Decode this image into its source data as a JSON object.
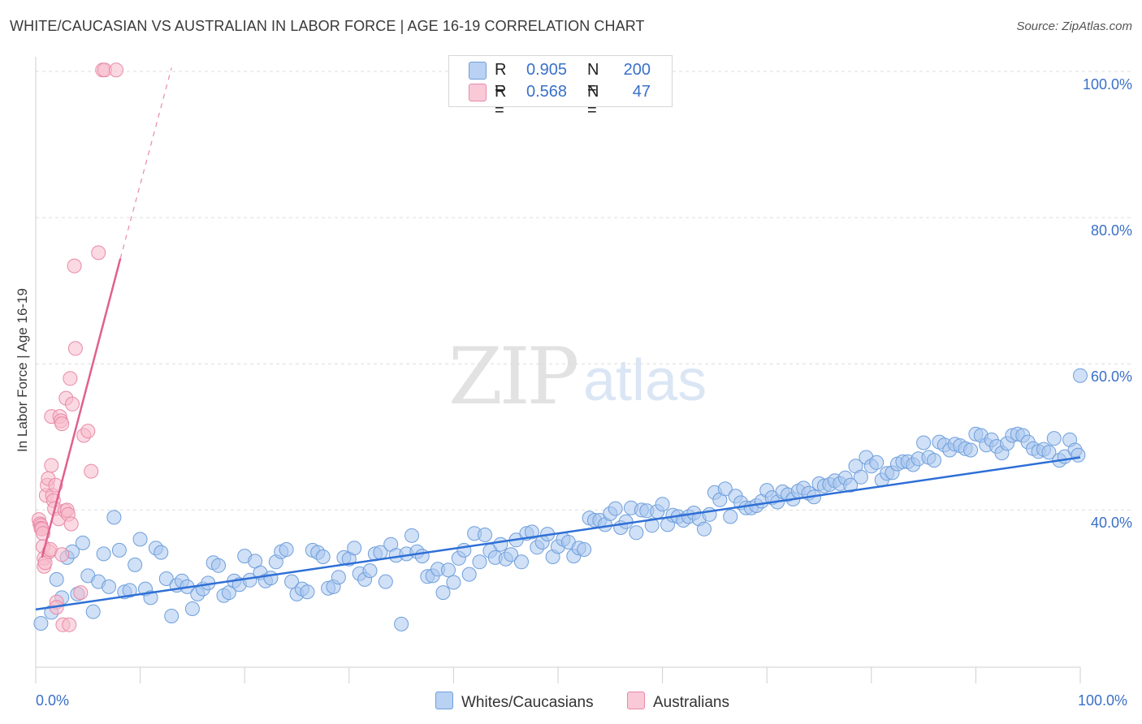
{
  "title": "WHITE/CAUCASIAN VS AUSTRALIAN IN LABOR FORCE | AGE 16-19 CORRELATION CHART",
  "source": "Source: ZipAtlas.com",
  "watermark": {
    "zip": "ZIP",
    "atlas": "atlas"
  },
  "legend": {
    "rows": [
      {
        "r_label": "R =",
        "r_value": "0.905",
        "n_label": "N =",
        "n_value": "200"
      },
      {
        "r_label": "R =",
        "r_value": "0.568",
        "n_label": "N =",
        "n_value": "47"
      }
    ]
  },
  "bottom_legend": {
    "series_a": "Whites/Caucasians",
    "series_b": "Australians"
  },
  "colors": {
    "blue_fill": "#a9c6ef",
    "blue_stroke": "#6f9fdc",
    "blue_line": "#2e6fd6",
    "pink_fill": "#f7b9cb",
    "pink_stroke": "#e88aa8",
    "pink_line": "#e0608f",
    "axis_text": "#3a70c8",
    "grid": "#dddddd"
  },
  "chart_data": {
    "type": "scatter",
    "title": "WHITE/CAUCASIAN VS AUSTRALIAN IN LABOR FORCE | AGE 16-19 CORRELATION CHART",
    "ylabel": "In Labor Force | Age 16-19",
    "xlabel": "",
    "xlim": [
      0,
      100
    ],
    "ylim": [
      18.5,
      102
    ],
    "x_ticks": [
      "0.0%",
      "100.0%"
    ],
    "y_ticks": [
      {
        "value": 40,
        "label": "40.0%"
      },
      {
        "value": 60,
        "label": "60.0%"
      },
      {
        "value": 80,
        "label": "80.0%"
      },
      {
        "value": 100,
        "label": "100.0%"
      }
    ],
    "grid": true,
    "series": [
      {
        "name": "Whites/Caucasians",
        "color": "#6f9fdc",
        "trend": {
          "x0": 0,
          "y0": 26.4,
          "x1": 100,
          "y1": 47.2,
          "dashed_ext": false
        },
        "points": [
          [
            0.5,
            24.5
          ],
          [
            1.5,
            26
          ],
          [
            2,
            30.5
          ],
          [
            2.5,
            28
          ],
          [
            3,
            33.5
          ],
          [
            3.5,
            34.3
          ],
          [
            4,
            28.5
          ],
          [
            4.5,
            35.5
          ],
          [
            5,
            31
          ],
          [
            5.5,
            26.1
          ],
          [
            6,
            30.2
          ],
          [
            6.5,
            34
          ],
          [
            7,
            29.5
          ],
          [
            7.5,
            39
          ],
          [
            8,
            34.5
          ],
          [
            8.5,
            28.8
          ],
          [
            9,
            29
          ],
          [
            9.5,
            32.5
          ],
          [
            10,
            36
          ],
          [
            10.5,
            29.2
          ],
          [
            11,
            28
          ],
          [
            11.5,
            34.8
          ],
          [
            12,
            34.2
          ],
          [
            12.5,
            30.6
          ],
          [
            13,
            25.5
          ],
          [
            13.5,
            29.7
          ],
          [
            14,
            30.3
          ],
          [
            14.5,
            29.5
          ],
          [
            15,
            26.5
          ],
          [
            15.5,
            28.5
          ],
          [
            16,
            29.2
          ],
          [
            16.5,
            30
          ],
          [
            17,
            32.8
          ],
          [
            17.5,
            32.4
          ],
          [
            18,
            28.3
          ],
          [
            18.5,
            28.7
          ],
          [
            19,
            30.3
          ],
          [
            19.5,
            29.8
          ],
          [
            20,
            33.7
          ],
          [
            20.5,
            30.4
          ],
          [
            21,
            33
          ],
          [
            21.5,
            31.4
          ],
          [
            22,
            30.3
          ],
          [
            22.5,
            30.7
          ],
          [
            23,
            32.9
          ],
          [
            23.5,
            34.3
          ],
          [
            24,
            34.6
          ],
          [
            24.5,
            30.2
          ],
          [
            25,
            28.5
          ],
          [
            25.5,
            29.2
          ],
          [
            26,
            28.8
          ],
          [
            26.5,
            34.5
          ],
          [
            27,
            34.2
          ],
          [
            27.5,
            33.6
          ],
          [
            28,
            29.3
          ],
          [
            28.5,
            29.5
          ],
          [
            29,
            30.8
          ],
          [
            29.5,
            33.5
          ],
          [
            30,
            33.3
          ],
          [
            30.5,
            34.8
          ],
          [
            31,
            31.3
          ],
          [
            31.5,
            30.5
          ],
          [
            32,
            31.7
          ],
          [
            32.5,
            34
          ],
          [
            33,
            34.2
          ],
          [
            33.5,
            30.2
          ],
          [
            34,
            35.3
          ],
          [
            34.5,
            33.8
          ],
          [
            35,
            24.4
          ],
          [
            35.5,
            34
          ],
          [
            36,
            36.5
          ],
          [
            36.5,
            34.3
          ],
          [
            37,
            33.7
          ],
          [
            37.5,
            30.9
          ],
          [
            38,
            31
          ],
          [
            38.5,
            31.9
          ],
          [
            39,
            28.7
          ],
          [
            39.5,
            31.8
          ],
          [
            40,
            30.1
          ],
          [
            40.5,
            33.4
          ],
          [
            41,
            34.5
          ],
          [
            41.5,
            31.2
          ],
          [
            42,
            36.8
          ],
          [
            42.5,
            32.9
          ],
          [
            43,
            36.6
          ],
          [
            43.5,
            34.4
          ],
          [
            44,
            33.5
          ],
          [
            44.5,
            35.3
          ],
          [
            45,
            33.3
          ],
          [
            45.5,
            33.9
          ],
          [
            46,
            35.9
          ],
          [
            46.5,
            32.9
          ],
          [
            47,
            36.8
          ],
          [
            47.5,
            37
          ],
          [
            48,
            34.9
          ],
          [
            48.5,
            35.6
          ],
          [
            49,
            36.7
          ],
          [
            49.5,
            33.6
          ],
          [
            50,
            35
          ],
          [
            50.5,
            36
          ],
          [
            51,
            35.6
          ],
          [
            51.5,
            33.7
          ],
          [
            52,
            34.8
          ],
          [
            52.5,
            34.6
          ],
          [
            53,
            38.9
          ],
          [
            53.5,
            38.6
          ],
          [
            54,
            38.6
          ],
          [
            54.5,
            38
          ],
          [
            55,
            39.5
          ],
          [
            55.5,
            40.2
          ],
          [
            56,
            37.6
          ],
          [
            56.5,
            38.4
          ],
          [
            57,
            40.3
          ],
          [
            57.5,
            36.9
          ],
          [
            58,
            40
          ],
          [
            58.5,
            39.9
          ],
          [
            59,
            37.9
          ],
          [
            59.5,
            39.8
          ],
          [
            60,
            40.8
          ],
          [
            60.5,
            38
          ],
          [
            61,
            39.3
          ],
          [
            61.5,
            39.1
          ],
          [
            62,
            38.6
          ],
          [
            62.5,
            39.1
          ],
          [
            63,
            39.6
          ],
          [
            63.5,
            38.8
          ],
          [
            64,
            37.4
          ],
          [
            64.5,
            39.4
          ],
          [
            65,
            42.4
          ],
          [
            65.5,
            41.4
          ],
          [
            66,
            42.9
          ],
          [
            66.5,
            39.1
          ],
          [
            67,
            41.9
          ],
          [
            67.5,
            41
          ],
          [
            68,
            40.3
          ],
          [
            68.5,
            40.3
          ],
          [
            69,
            40.6
          ],
          [
            69.5,
            41.2
          ],
          [
            70,
            42.7
          ],
          [
            70.5,
            41.7
          ],
          [
            71,
            41.1
          ],
          [
            71.5,
            42.5
          ],
          [
            72,
            42.1
          ],
          [
            72.5,
            41.5
          ],
          [
            73,
            42.6
          ],
          [
            73.5,
            43
          ],
          [
            74,
            42.3
          ],
          [
            74.5,
            41.8
          ],
          [
            75,
            43.6
          ],
          [
            75.5,
            43.3
          ],
          [
            76,
            43.5
          ],
          [
            76.5,
            44
          ],
          [
            77,
            43.6
          ],
          [
            77.5,
            44.4
          ],
          [
            78,
            43.4
          ],
          [
            78.5,
            46
          ],
          [
            79,
            44.5
          ],
          [
            79.5,
            47.2
          ],
          [
            80,
            46
          ],
          [
            80.5,
            46.5
          ],
          [
            81,
            44.1
          ],
          [
            81.5,
            45
          ],
          [
            82,
            45.1
          ],
          [
            82.5,
            46.3
          ],
          [
            83,
            46.6
          ],
          [
            83.5,
            46.6
          ],
          [
            84,
            46.2
          ],
          [
            84.5,
            47
          ],
          [
            85,
            49.2
          ],
          [
            85.5,
            47.2
          ],
          [
            86,
            46.8
          ],
          [
            86.5,
            49.3
          ],
          [
            87,
            48.9
          ],
          [
            87.5,
            48.2
          ],
          [
            88,
            49
          ],
          [
            88.5,
            48.8
          ],
          [
            89,
            48.4
          ],
          [
            89.5,
            48.2
          ],
          [
            90,
            50.4
          ],
          [
            90.5,
            50.2
          ],
          [
            91,
            48.9
          ],
          [
            91.5,
            49.6
          ],
          [
            92,
            48.7
          ],
          [
            92.5,
            47.8
          ],
          [
            93,
            49.1
          ],
          [
            93.5,
            50.2
          ],
          [
            94,
            50.4
          ],
          [
            94.5,
            50.2
          ],
          [
            95,
            49.3
          ],
          [
            95.5,
            48.4
          ],
          [
            96,
            48
          ],
          [
            96.5,
            48.3
          ],
          [
            97,
            47.9
          ],
          [
            97.5,
            49.8
          ],
          [
            98,
            46.8
          ],
          [
            98.5,
            47.3
          ],
          [
            99,
            49.6
          ],
          [
            99.5,
            48.2
          ],
          [
            100,
            58.4
          ],
          [
            99.8,
            47.5
          ]
        ]
      },
      {
        "name": "Australians",
        "color": "#e88aa8",
        "trend": {
          "x0": 0.6,
          "y0": 33.5,
          "x1": 8.1,
          "y1": 74.4,
          "dashed_ext": true,
          "dash_x1": 13,
          "dash_y1": 100.5
        },
        "points": [
          [
            0.3,
            38.7
          ],
          [
            0.4,
            38.1
          ],
          [
            0.5,
            37.9
          ],
          [
            0.5,
            37.5
          ],
          [
            0.6,
            37.4
          ],
          [
            0.7,
            36.8
          ],
          [
            0.7,
            35
          ],
          [
            0.8,
            33.4
          ],
          [
            0.8,
            32.3
          ],
          [
            0.9,
            32.8
          ],
          [
            1,
            42
          ],
          [
            1.1,
            43.4
          ],
          [
            1.2,
            44.3
          ],
          [
            1.3,
            34.3
          ],
          [
            1.4,
            34.6
          ],
          [
            1.5,
            46.1
          ],
          [
            1.5,
            52.8
          ],
          [
            1.6,
            42
          ],
          [
            1.7,
            41.3
          ],
          [
            1.8,
            40.2
          ],
          [
            1.9,
            43.4
          ],
          [
            2,
            27.4
          ],
          [
            2,
            26.7
          ],
          [
            2.2,
            38.8
          ],
          [
            2.3,
            52.8
          ],
          [
            2.4,
            52.2
          ],
          [
            2.5,
            51.8
          ],
          [
            2.5,
            33.9
          ],
          [
            2.6,
            24.3
          ],
          [
            2.8,
            39.9
          ],
          [
            2.9,
            55.3
          ],
          [
            3,
            40
          ],
          [
            3.1,
            39.4
          ],
          [
            3.2,
            24.3
          ],
          [
            3.3,
            58
          ],
          [
            3.4,
            38.1
          ],
          [
            3.5,
            54.5
          ],
          [
            3.7,
            73.4
          ],
          [
            3.8,
            62.1
          ],
          [
            4.3,
            28.7
          ],
          [
            4.6,
            50.2
          ],
          [
            5,
            50.8
          ],
          [
            5.3,
            45.3
          ],
          [
            6,
            75.2
          ],
          [
            6.4,
            100.2
          ],
          [
            6.6,
            100.2
          ],
          [
            7.7,
            100.2
          ]
        ]
      }
    ]
  }
}
